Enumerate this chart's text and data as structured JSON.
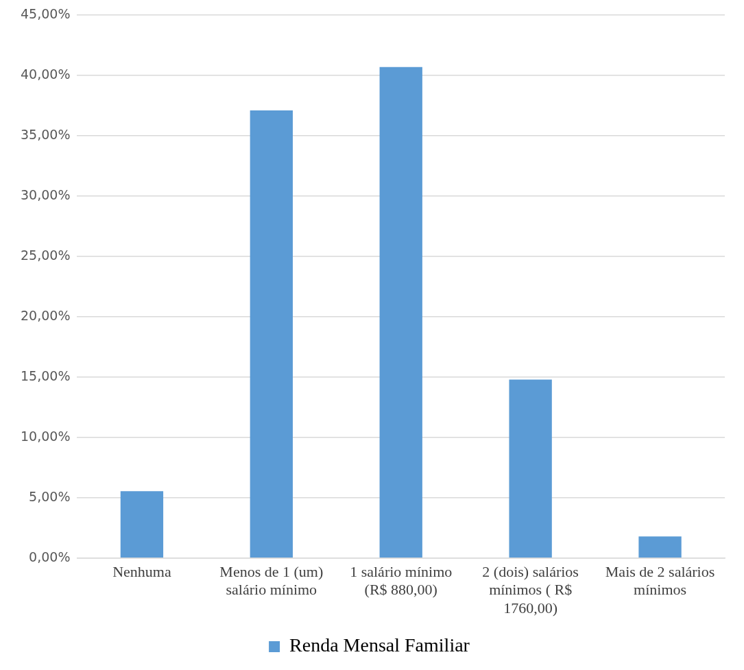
{
  "chart_data": {
    "type": "bar",
    "categories": [
      "Nenhuma",
      "Menos de 1 (um) salário mínimo",
      "1 salário mínimo (R$ 880,00)",
      "2 (dois) salários mínimos ( R$ 1760,00)",
      "Mais de 2 salários mínimos"
    ],
    "series": [
      {
        "name": "Renda Mensal Familiar",
        "color": "#5b9bd5",
        "values": [
          5.55,
          37.1,
          40.7,
          14.8,
          1.8
        ]
      }
    ],
    "ylim": [
      0,
      45
    ],
    "yticks": [
      {
        "value": 0,
        "label": "0,00%"
      },
      {
        "value": 5,
        "label": "5,00%"
      },
      {
        "value": 10,
        "label": "10,00%"
      },
      {
        "value": 15,
        "label": "15,00%"
      },
      {
        "value": 20,
        "label": "20,00%"
      },
      {
        "value": 25,
        "label": "25,00%"
      },
      {
        "value": 30,
        "label": "30,00%"
      },
      {
        "value": 35,
        "label": "35,00%"
      },
      {
        "value": 40,
        "label": "40,00%"
      },
      {
        "value": 45,
        "label": "45,00%"
      }
    ],
    "grid": "y",
    "legend": "bottom"
  }
}
